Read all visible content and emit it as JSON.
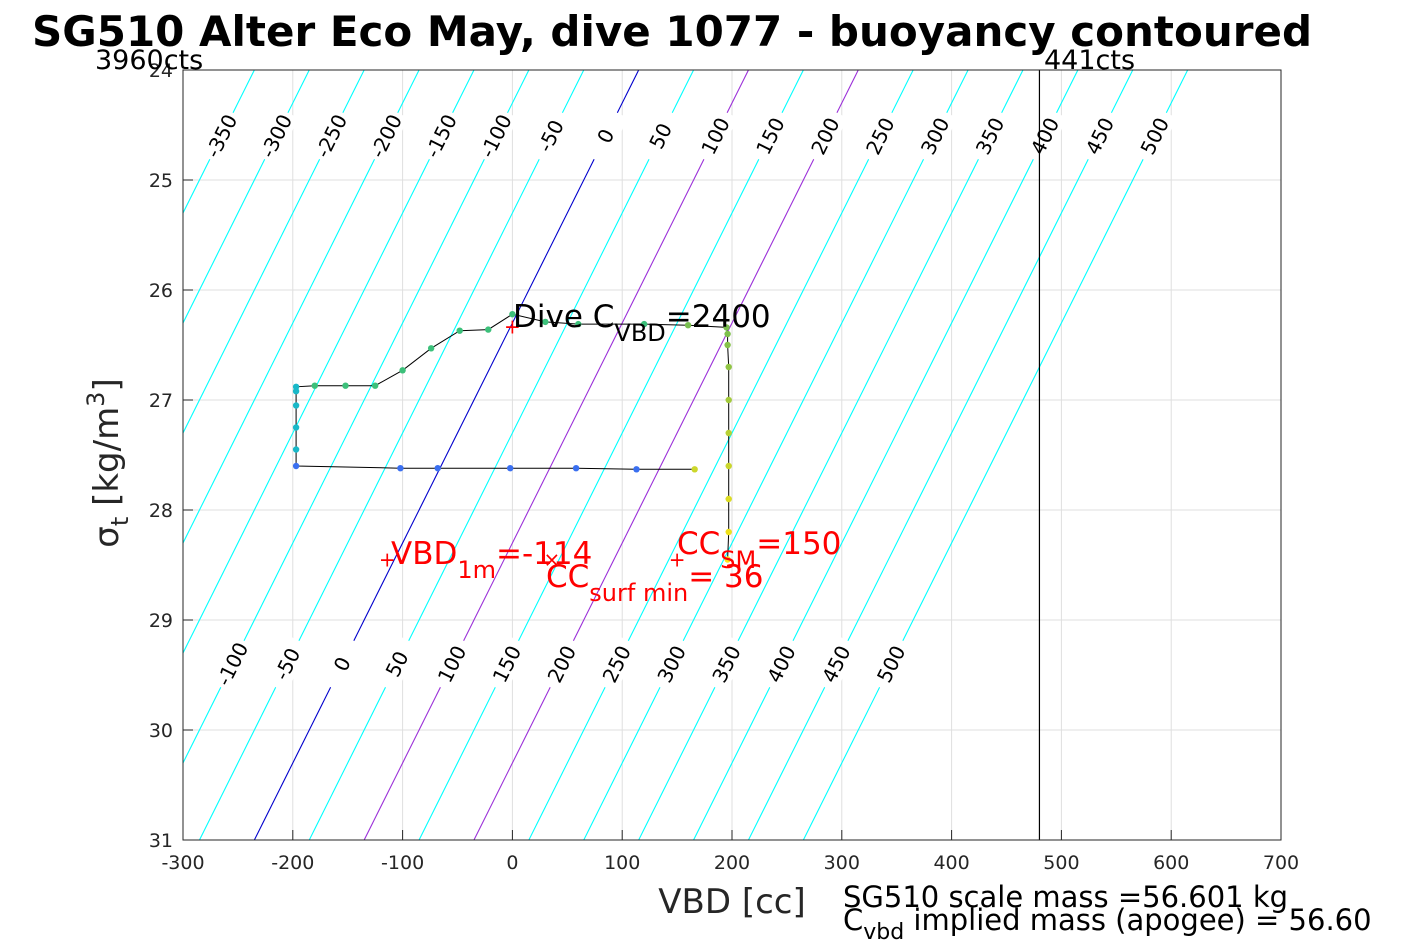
{
  "chart_data": {
    "type": "scatter",
    "title": "SG510 Alter Eco May, dive 1077 - buoyancy contoured",
    "xlabel": "VBD [cc]",
    "ylabel": "σ_t [kg/m^3]",
    "ylabel_parts": {
      "symbol": "σ",
      "sub": "t",
      "text": " [kg/m",
      "sup": "3",
      "close": "]"
    },
    "xlim": [
      -300,
      700
    ],
    "ylim": [
      24,
      31
    ],
    "y_reversed": true,
    "xticks": [
      -300,
      -200,
      -100,
      0,
      100,
      200,
      300,
      400,
      500,
      600,
      700
    ],
    "yticks": [
      24,
      25,
      26,
      27,
      28,
      29,
      30,
      31
    ],
    "grid": true,
    "count_labels": {
      "left": "3960cts",
      "right": "441cts"
    },
    "count_limit_line_x": 480,
    "buoyancy_contours": {
      "levels": [
        -350,
        -300,
        -250,
        -200,
        -150,
        -100,
        -50,
        0,
        50,
        100,
        150,
        200,
        250,
        300,
        350,
        400,
        450,
        500
      ],
      "colors": {
        "default": "#00ffff",
        "zero": "#0000cd",
        "highlight": "#9b30d9"
      },
      "highlight_levels": [
        100,
        200
      ],
      "upper_labels": [
        "-350",
        "-300",
        "-250",
        "-200",
        "-150",
        "-100",
        "-50",
        "0",
        "50",
        "100",
        "150",
        "200",
        "250",
        "300",
        "350",
        "400",
        "450",
        "500"
      ],
      "lower_labels": [
        "-100",
        "-50",
        "0",
        "50",
        "100",
        "150",
        "200",
        "250",
        "300",
        "350",
        "400",
        "450",
        "500"
      ]
    },
    "series": [
      {
        "role": "dive",
        "points": [
          [
            196,
            28.45
          ],
          [
            197,
            28.2
          ],
          [
            197,
            27.9
          ],
          [
            197,
            27.6
          ],
          [
            197,
            27.3
          ],
          [
            197,
            27.0
          ],
          [
            197,
            26.7
          ],
          [
            196,
            26.5
          ],
          [
            196,
            26.4
          ],
          [
            195,
            26.34
          ],
          [
            160,
            26.32
          ],
          [
            120,
            26.31
          ],
          [
            60,
            26.31
          ],
          [
            30,
            26.29
          ],
          [
            0,
            26.22
          ],
          [
            -22,
            26.36
          ],
          [
            -48,
            26.37
          ],
          [
            -74,
            26.53
          ],
          [
            -100,
            26.73
          ],
          [
            -125,
            26.87
          ],
          [
            -152,
            26.87
          ],
          [
            -180,
            26.87
          ],
          [
            -197,
            26.88
          ]
        ]
      },
      {
        "role": "climb",
        "points": [
          [
            -197,
            26.92
          ],
          [
            -197,
            27.05
          ],
          [
            -197,
            27.25
          ],
          [
            -197,
            27.45
          ],
          [
            -197,
            27.6
          ],
          [
            -102,
            27.62
          ],
          [
            -68,
            27.62
          ],
          [
            -2,
            27.62
          ],
          [
            58,
            27.62
          ],
          [
            113,
            27.63
          ],
          [
            166,
            27.63
          ]
        ]
      }
    ],
    "annotations": {
      "dive_cvbd": {
        "main": "Dive C",
        "sub": "VBD",
        "value": "=2400",
        "marker_x": 0,
        "marker_y": 26.33
      },
      "vbd_1m": {
        "main": "VBD",
        "sub": "1m",
        "value": "=-114",
        "marker_x": -114,
        "marker_y": 28.45
      },
      "cc_sm": {
        "main": "CC",
        "sub": "SM",
        "value": "=150",
        "marker_x": 150,
        "marker_y": 28.45
      },
      "cc_surf_min": {
        "main": "CC",
        "sub": "surf min",
        "value": "= 36",
        "marker_x": 36,
        "marker_y": 28.45
      }
    },
    "footer": {
      "scale_mass": "SG510 scale mass =56.601 kg",
      "implied_main": "C",
      "implied_sub": "vbd",
      "implied_rest": " implied mass (apogee) = 56.60"
    }
  }
}
